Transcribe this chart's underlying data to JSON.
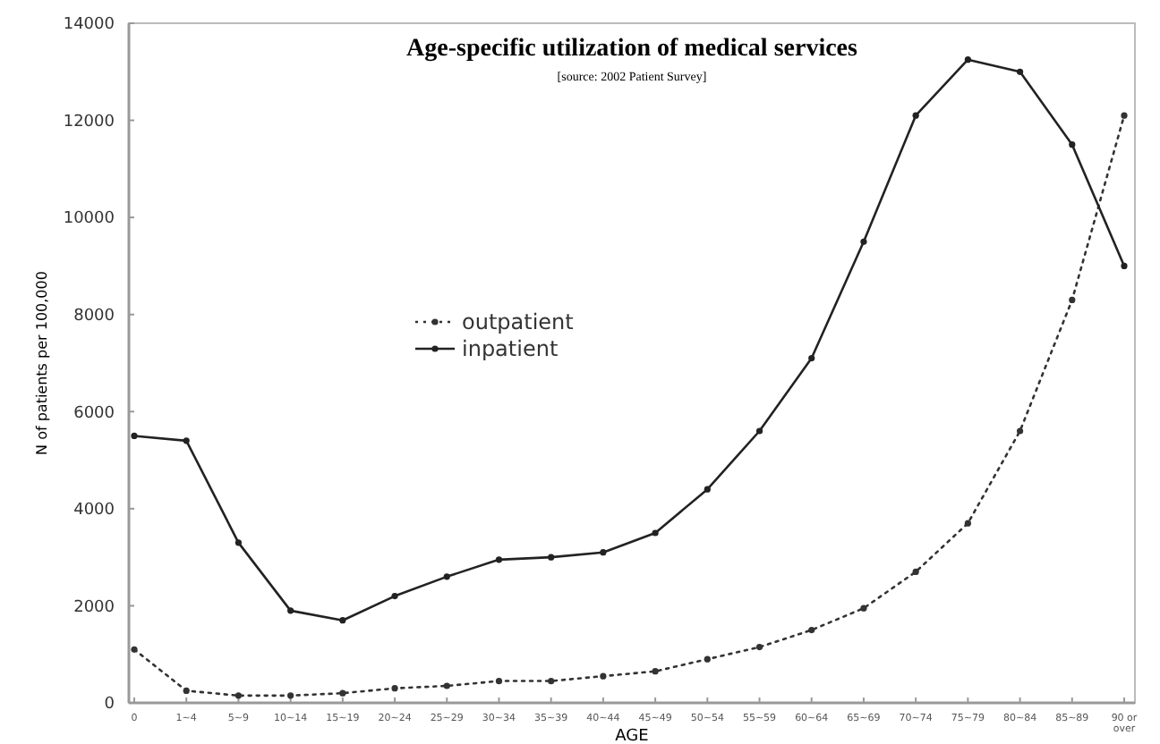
{
  "chart_data": {
    "type": "line",
    "title": "Age-specific utilization of medical services",
    "subtitle": "[source: 2002 Patient Survey]",
    "xlabel": "AGE",
    "ylabel": "N of patients per 100,000",
    "categories": [
      "0",
      "1~4",
      "5~9",
      "10~14",
      "15~19",
      "20~24",
      "25~29",
      "30~34",
      "35~39",
      "40~44",
      "45~49",
      "50~54",
      "55~59",
      "60~64",
      "65~69",
      "70~74",
      "75~79",
      "80~84",
      "85~89",
      "90 or over"
    ],
    "series": [
      {
        "name": "outpatient",
        "color": "#333333",
        "line_style": "dotted",
        "values": [
          1100,
          250,
          150,
          150,
          200,
          300,
          350,
          450,
          450,
          550,
          650,
          900,
          1150,
          1500,
          1950,
          2700,
          3700,
          5600,
          8300,
          12100
        ]
      },
      {
        "name": "inpatient",
        "color": "#222222",
        "line_style": "solid",
        "values": [
          5500,
          5400,
          3300,
          1900,
          1700,
          2200,
          2600,
          2950,
          3000,
          3100,
          3500,
          4400,
          5600,
          7100,
          9500,
          12100,
          13250,
          13000,
          11500,
          9000
        ]
      }
    ],
    "ylim": [
      0,
      14000
    ],
    "yticks": [
      0,
      2000,
      4000,
      6000,
      8000,
      10000,
      12000,
      14000
    ],
    "grid": false,
    "legend": "center",
    "marker": "circle"
  }
}
